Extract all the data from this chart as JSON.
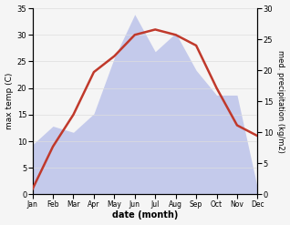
{
  "months": [
    "Jan",
    "Feb",
    "Mar",
    "Apr",
    "May",
    "Jun",
    "Jul",
    "Aug",
    "Sep",
    "Oct",
    "Nov",
    "Dec"
  ],
  "temp_c": [
    1,
    9,
    15,
    23,
    26,
    30,
    31,
    30,
    28,
    20,
    13,
    11
  ],
  "precip_mm": [
    8,
    11,
    10,
    13,
    22,
    29,
    23,
    26,
    20,
    16,
    16,
    1
  ],
  "temp_color": "#c0392b",
  "precip_color": "#b0b8e8",
  "ylabel_left": "max temp (C)",
  "ylabel_right": "med. precipitation (kg/m2)",
  "xlabel": "date (month)",
  "ylim_left": [
    0,
    35
  ],
  "ylim_right": [
    0,
    30
  ],
  "yticks_left": [
    0,
    5,
    10,
    15,
    20,
    25,
    30,
    35
  ],
  "yticks_right": [
    0,
    5,
    10,
    15,
    20,
    25,
    30
  ],
  "bg_color": "#f5f5f5",
  "line_width": 1.8
}
